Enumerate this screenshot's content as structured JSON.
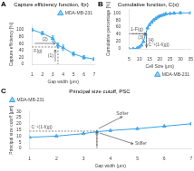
{
  "chart_data": [
    {
      "type": "line",
      "panel_label": "A",
      "title": "Capture efficiency function, f(x)",
      "x_label": "Gap width (μm)",
      "y_label": "Capture efficiency [%]",
      "x": [
        1,
        2,
        3,
        3.5,
        4,
        5,
        6,
        7
      ],
      "series": [
        {
          "name": "MDA-MB-231",
          "marker": "triangle",
          "values": [
            100,
            90,
            75,
            55,
            48,
            30,
            20,
            15
          ],
          "errors": [
            4,
            5,
            8,
            7,
            8,
            6,
            5,
            4
          ]
        }
      ],
      "xlim": [
        1,
        7
      ],
      "ylim": [
        0,
        115
      ],
      "xticks": [
        1,
        2,
        3,
        4,
        5,
        6,
        7
      ],
      "yticks": [
        0,
        20,
        40,
        60,
        80,
        100
      ],
      "grid": false,
      "legend": "upper right",
      "guide": {
        "x": 3.5,
        "y": 50
      },
      "annotations": [
        "F(g)",
        "(1)",
        "(2)"
      ]
    },
    {
      "type": "line",
      "panel_label": "B",
      "title": "Cumulative function, C(x)",
      "x_label": "Cell Size (μm)",
      "y_label": "Cumulative percentage [%]",
      "x": [
        5,
        7,
        9,
        10,
        11,
        12,
        13,
        14,
        15,
        16,
        17,
        18,
        19,
        20,
        21,
        22,
        23,
        25,
        27,
        30,
        35
      ],
      "series": [
        {
          "name": "MDA-MB-231",
          "marker": "triangle",
          "values": [
            0,
            0,
            2,
            5,
            10,
            20,
            40,
            58,
            67,
            74,
            80,
            84,
            88,
            91,
            93,
            95,
            97,
            98,
            99,
            100,
            100
          ]
        }
      ],
      "xlim": [
        5,
        35
      ],
      "ylim": [
        0,
        110
      ],
      "xticks": [
        5,
        10,
        15,
        20,
        25,
        30,
        35
      ],
      "yticks": [
        0,
        20,
        40,
        60,
        80,
        100
      ],
      "grid": false,
      "legend": "lower right",
      "guide": {
        "x": 13.5,
        "y": 42
      },
      "annotations": [
        "1-F(g)",
        "C⁻¹(1-f(g))",
        "(3)",
        "(4)"
      ]
    },
    {
      "type": "line",
      "panel_label": "C",
      "title": "Principal size cutoff, PSC",
      "x_label": "Gap width (μm)",
      "y_label": "Principal size cutoff [μm]",
      "x": [
        1,
        2,
        3,
        3.5,
        4,
        5,
        6,
        7
      ],
      "series": [
        {
          "name": "MDA-MB-231",
          "marker": "triangle",
          "values": [
            9,
            10,
            12,
            13.5,
            14.5,
            16,
            18,
            20
          ]
        }
      ],
      "xlim": [
        1,
        7
      ],
      "ylim": [
        0,
        30
      ],
      "xticks": [
        1,
        2,
        3,
        4,
        5,
        6,
        7
      ],
      "yticks": [
        0,
        5,
        10,
        15,
        20,
        25,
        30
      ],
      "grid": false,
      "legend": "upper left",
      "guide": {
        "x": 3.5,
        "y": 14
      },
      "annotations": [
        "C⁻¹(1-f(g))",
        "Softer",
        "Stiffer"
      ]
    }
  ]
}
